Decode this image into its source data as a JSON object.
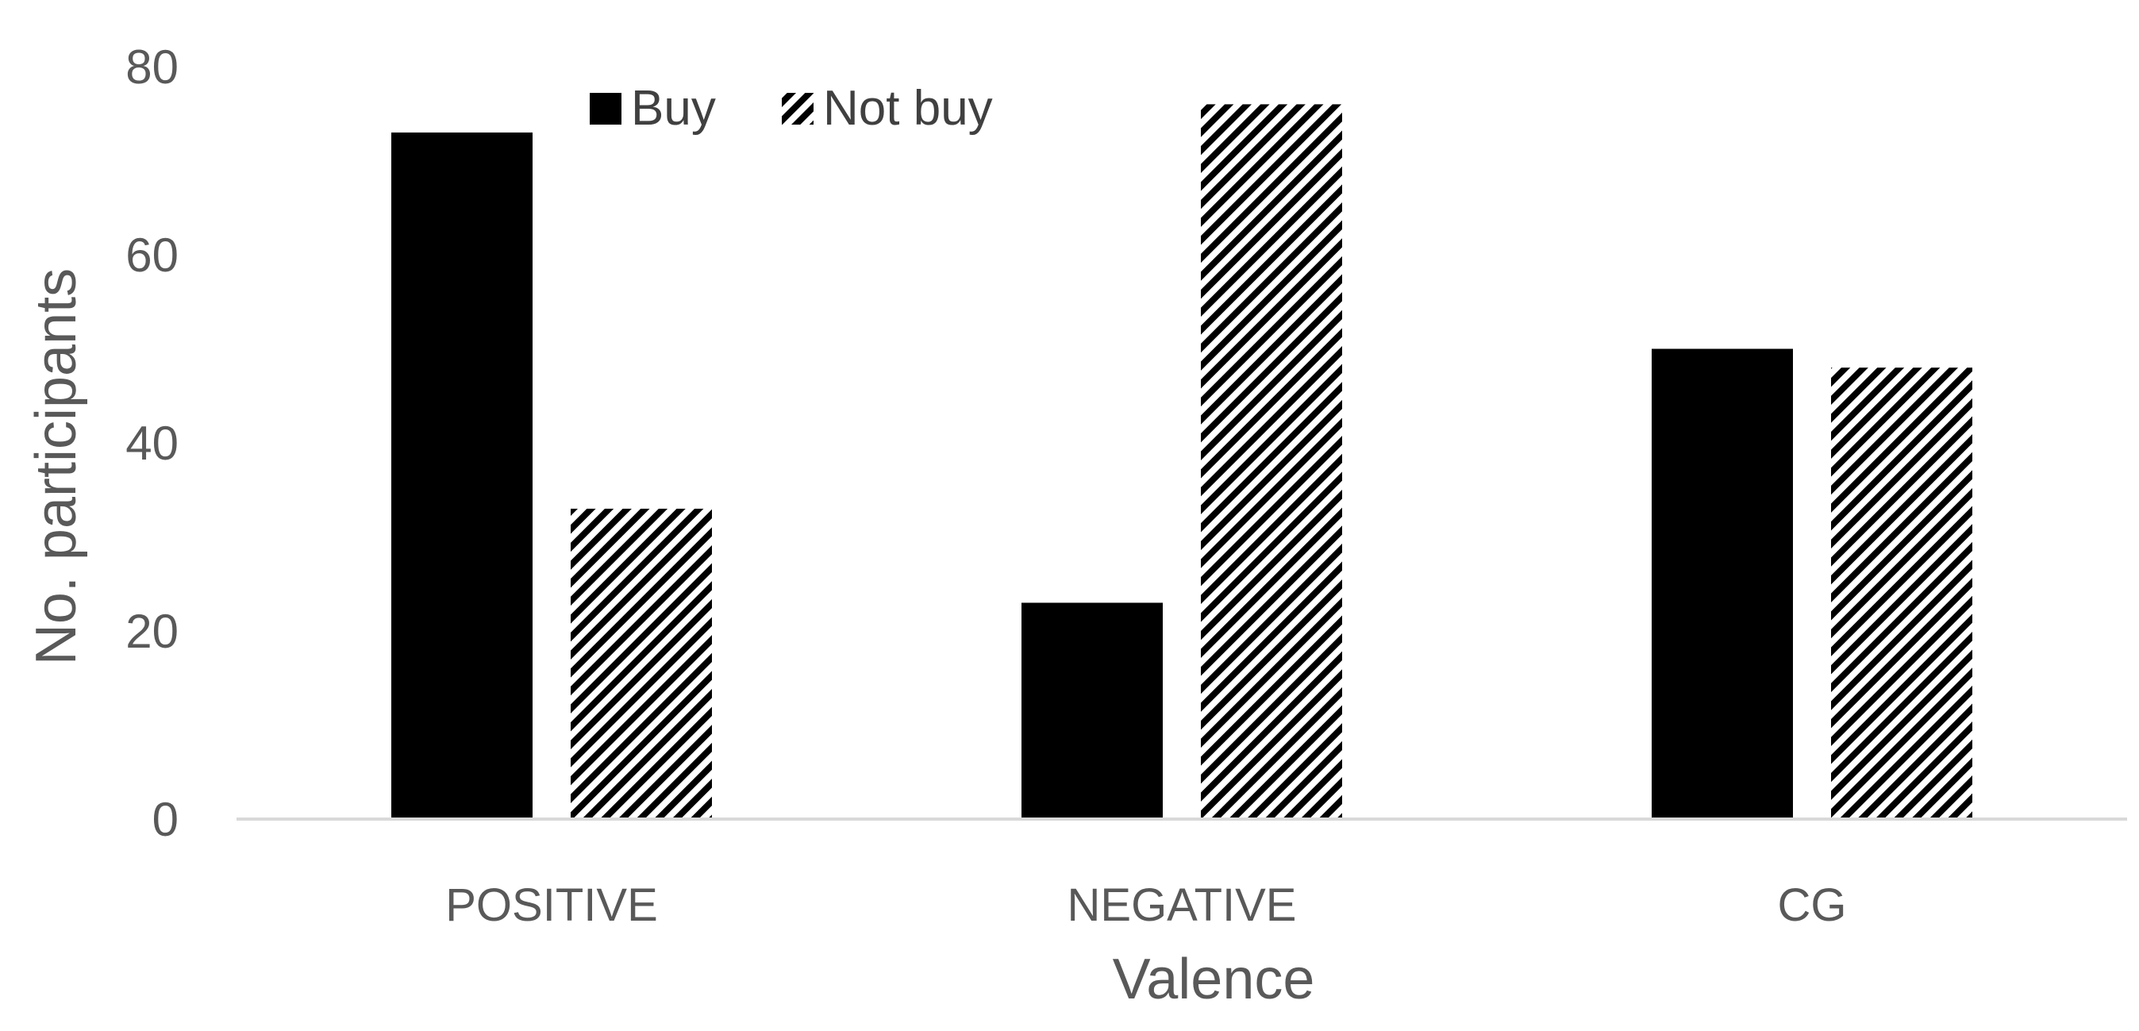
{
  "chart_data": {
    "type": "bar",
    "categories": [
      "POSITIVE",
      "NEGATIVE",
      "CG"
    ],
    "series": [
      {
        "name": "Buy",
        "values": [
          73,
          23,
          50
        ],
        "fill": "solid"
      },
      {
        "name": "Not buy",
        "values": [
          33,
          76,
          48
        ],
        "fill": "diagonal-stripes"
      }
    ],
    "xlabel": "Valence",
    "ylabel": "No. participants",
    "ylim": [
      0,
      80
    ],
    "yticks": [
      0,
      20,
      40,
      60,
      80
    ],
    "grid": false,
    "legend": "top-left",
    "colors": {
      "bar": "#000000",
      "stripe_bg": "#ffffff",
      "axis": "#d9d9d9",
      "text": "#595959"
    }
  }
}
